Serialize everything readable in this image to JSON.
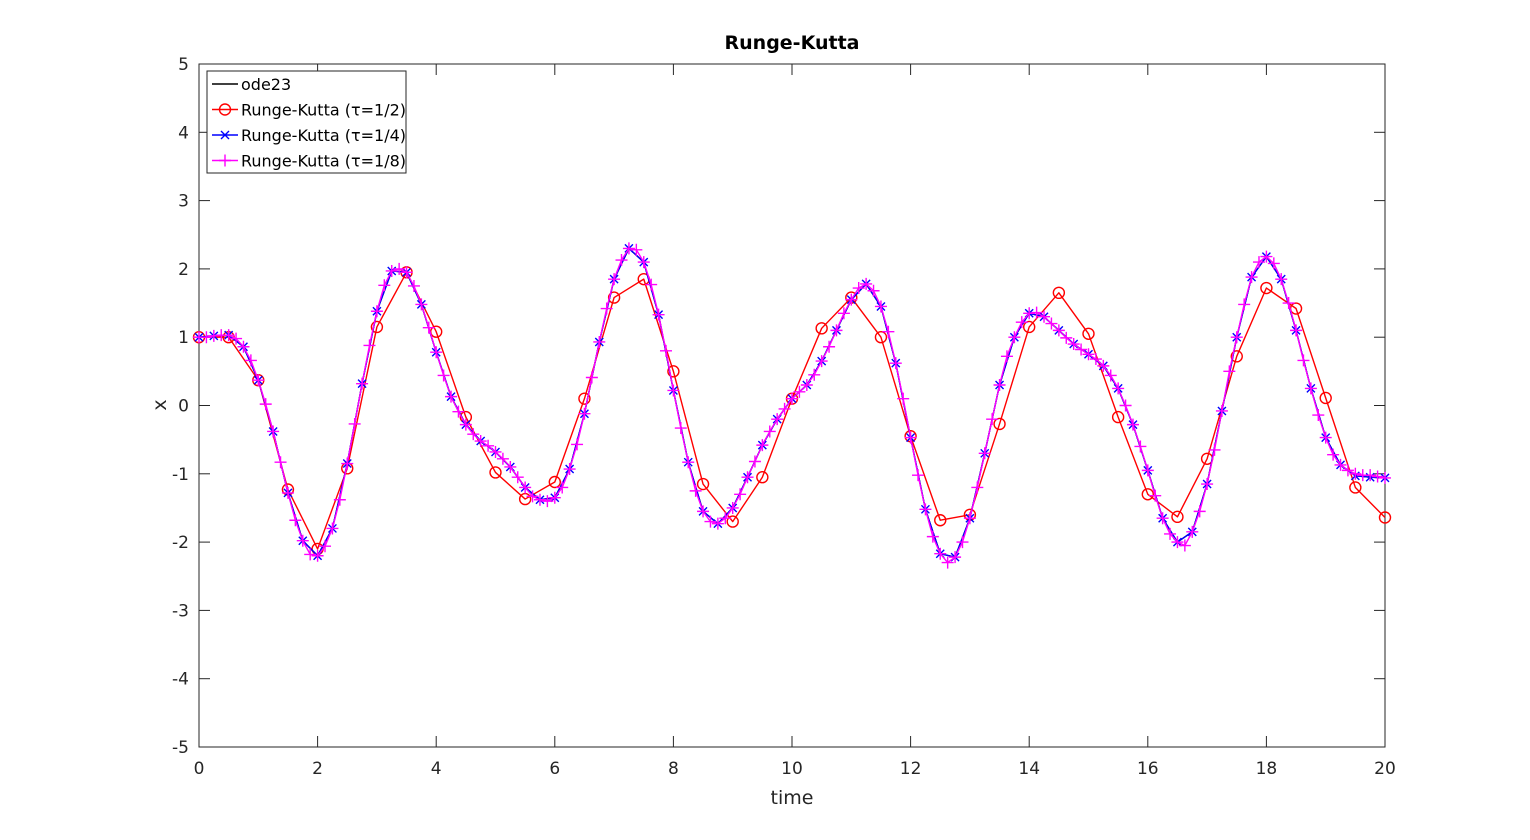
{
  "chart_data": {
    "type": "line",
    "title": "Runge-Kutta",
    "xlabel": "time",
    "ylabel": "x",
    "xlim": [
      0,
      20
    ],
    "ylim": [
      -5,
      5
    ],
    "xticks": [
      0,
      2,
      4,
      6,
      8,
      10,
      12,
      14,
      16,
      18,
      20
    ],
    "yticks": [
      -5,
      -4,
      -3,
      -2,
      -1,
      0,
      1,
      2,
      3,
      4,
      5
    ],
    "grid": false,
    "legend_position": "top-left",
    "series": [
      {
        "name": "ode23",
        "legend_label": "ode23",
        "color": "#000000",
        "marker": "none",
        "x": [
          0,
          0.25,
          0.5,
          0.75,
          1,
          1.25,
          1.5,
          1.75,
          2,
          2.25,
          2.5,
          2.75,
          3,
          3.25,
          3.5,
          3.75,
          4,
          4.25,
          4.5,
          4.75,
          5,
          5.25,
          5.5,
          5.75,
          6,
          6.25,
          6.5,
          6.75,
          7,
          7.25,
          7.5,
          7.75,
          8,
          8.25,
          8.5,
          8.75,
          9,
          9.25,
          9.5,
          9.75,
          10,
          10.25,
          10.5,
          10.75,
          11,
          11.25,
          11.5,
          11.75,
          12,
          12.25,
          12.5,
          12.75,
          13,
          13.25,
          13.5,
          13.75,
          14,
          14.25,
          14.5,
          14.75,
          15,
          15.25,
          15.5,
          15.75,
          16,
          16.25,
          16.5,
          16.75,
          17,
          17.25,
          17.5,
          17.75,
          18,
          18.25,
          18.5,
          18.75,
          19,
          19.25,
          19.5,
          19.75,
          20
        ],
        "values": [
          1,
          1.02,
          1.03,
          0.86,
          0.37,
          -0.38,
          -1.28,
          -1.98,
          -2.2,
          -1.8,
          -0.85,
          0.32,
          1.38,
          1.97,
          1.95,
          1.48,
          0.78,
          0.13,
          -0.28,
          -0.52,
          -0.68,
          -0.9,
          -1.2,
          -1.38,
          -1.35,
          -0.93,
          -0.12,
          0.93,
          1.85,
          2.3,
          2.1,
          1.33,
          0.22,
          -0.83,
          -1.55,
          -1.73,
          -1.5,
          -1.05,
          -0.58,
          -0.2,
          0.1,
          0.3,
          0.65,
          1.1,
          1.55,
          1.78,
          1.45,
          0.62,
          -0.47,
          -1.52,
          -2.17,
          -2.22,
          -1.65,
          -0.7,
          0.3,
          1.0,
          1.35,
          1.3,
          1.1,
          0.9,
          0.75,
          0.58,
          0.25,
          -0.28,
          -0.95,
          -1.65,
          -2.0,
          -1.85,
          -1.15,
          -0.08,
          1.0,
          1.88,
          2.18,
          1.85,
          1.1,
          0.25,
          -0.47,
          -0.87,
          -1.03,
          -1.05,
          -1.06
        ]
      },
      {
        "name": "Runge-Kutta (τ=1/2)",
        "legend_label": "Runge-Kutta (τ=1/2)",
        "color": "#ff0000",
        "marker": "circle",
        "x": [
          0,
          0.5,
          1,
          1.5,
          2,
          2.5,
          3,
          3.5,
          4,
          4.5,
          5,
          5.5,
          6,
          6.5,
          7,
          7.5,
          8,
          8.5,
          9,
          9.5,
          10,
          10.5,
          11,
          11.5,
          12,
          12.5,
          13,
          13.5,
          14,
          14.5,
          15,
          15.5,
          16,
          16.5,
          17,
          17.5,
          18,
          18.5,
          19,
          19.5,
          20
        ],
        "values": [
          1,
          1.0,
          0.37,
          -1.23,
          -2.1,
          -0.92,
          1.15,
          1.95,
          1.08,
          -0.17,
          -0.98,
          -1.37,
          -1.12,
          0.1,
          1.58,
          1.85,
          0.5,
          -1.15,
          -1.7,
          -1.05,
          0.1,
          1.13,
          1.58,
          1.0,
          -0.45,
          -1.68,
          -1.6,
          -0.27,
          1.15,
          1.65,
          1.05,
          -0.17,
          -1.3,
          -1.63,
          -0.78,
          0.72,
          1.72,
          1.42,
          0.11,
          -1.2,
          -1.64
        ]
      },
      {
        "name": "Runge-Kutta (τ=1/4)",
        "legend_label": "Runge-Kutta (τ=1/4)",
        "color": "#0000ff",
        "marker": "x",
        "x": [
          0,
          0.25,
          0.5,
          0.75,
          1,
          1.25,
          1.5,
          1.75,
          2,
          2.25,
          2.5,
          2.75,
          3,
          3.25,
          3.5,
          3.75,
          4,
          4.25,
          4.5,
          4.75,
          5,
          5.25,
          5.5,
          5.75,
          6,
          6.25,
          6.5,
          6.75,
          7,
          7.25,
          7.5,
          7.75,
          8,
          8.25,
          8.5,
          8.75,
          9,
          9.25,
          9.5,
          9.75,
          10,
          10.25,
          10.5,
          10.75,
          11,
          11.25,
          11.5,
          11.75,
          12,
          12.25,
          12.5,
          12.75,
          13,
          13.25,
          13.5,
          13.75,
          14,
          14.25,
          14.5,
          14.75,
          15,
          15.25,
          15.5,
          15.75,
          16,
          16.25,
          16.5,
          16.75,
          17,
          17.25,
          17.5,
          17.75,
          18,
          18.25,
          18.5,
          18.75,
          19,
          19.25,
          19.5,
          19.75,
          20
        ],
        "values": [
          1,
          1.02,
          1.03,
          0.86,
          0.37,
          -0.38,
          -1.28,
          -1.98,
          -2.2,
          -1.8,
          -0.85,
          0.32,
          1.38,
          1.97,
          1.95,
          1.48,
          0.78,
          0.13,
          -0.28,
          -0.52,
          -0.68,
          -0.9,
          -1.2,
          -1.38,
          -1.35,
          -0.93,
          -0.12,
          0.93,
          1.85,
          2.3,
          2.1,
          1.33,
          0.22,
          -0.83,
          -1.55,
          -1.73,
          -1.5,
          -1.05,
          -0.58,
          -0.2,
          0.1,
          0.3,
          0.65,
          1.1,
          1.55,
          1.78,
          1.45,
          0.62,
          -0.47,
          -1.52,
          -2.17,
          -2.22,
          -1.65,
          -0.7,
          0.3,
          1.0,
          1.35,
          1.3,
          1.1,
          0.9,
          0.75,
          0.58,
          0.25,
          -0.28,
          -0.95,
          -1.65,
          -2.0,
          -1.85,
          -1.15,
          -0.08,
          1.0,
          1.88,
          2.18,
          1.85,
          1.1,
          0.25,
          -0.47,
          -0.87,
          -1.03,
          -1.05,
          -1.06
        ]
      },
      {
        "name": "Runge-Kutta (τ=1/8)",
        "legend_label": "Runge-Kutta (τ=1/8)",
        "color": "#ff00ff",
        "marker": "plus",
        "x": [
          0,
          0.125,
          0.25,
          0.375,
          0.5,
          0.625,
          0.75,
          0.875,
          1,
          1.125,
          1.25,
          1.375,
          1.5,
          1.625,
          1.75,
          1.875,
          2,
          2.125,
          2.25,
          2.375,
          2.5,
          2.625,
          2.75,
          2.875,
          3,
          3.125,
          3.25,
          3.375,
          3.5,
          3.625,
          3.75,
          3.875,
          4,
          4.125,
          4.25,
          4.375,
          4.5,
          4.625,
          4.75,
          4.875,
          5,
          5.125,
          5.25,
          5.375,
          5.5,
          5.625,
          5.75,
          5.875,
          6,
          6.125,
          6.25,
          6.375,
          6.5,
          6.625,
          6.75,
          6.875,
          7,
          7.125,
          7.25,
          7.375,
          7.5,
          7.625,
          7.75,
          7.875,
          8,
          8.125,
          8.25,
          8.375,
          8.5,
          8.625,
          8.75,
          8.875,
          9,
          9.125,
          9.25,
          9.375,
          9.5,
          9.625,
          9.75,
          9.875,
          10,
          10.125,
          10.25,
          10.375,
          10.5,
          10.625,
          10.75,
          10.875,
          11,
          11.125,
          11.25,
          11.375,
          11.5,
          11.625,
          11.75,
          11.875,
          12,
          12.125,
          12.25,
          12.375,
          12.5,
          12.625,
          12.75,
          12.875,
          13,
          13.125,
          13.25,
          13.375,
          13.5,
          13.625,
          13.75,
          13.875,
          14,
          14.125,
          14.25,
          14.375,
          14.5,
          14.625,
          14.75,
          14.875,
          15,
          15.125,
          15.25,
          15.375,
          15.5,
          15.625,
          15.75,
          15.875,
          16,
          16.125,
          16.25,
          16.375,
          16.5,
          16.625,
          16.75,
          16.875,
          17,
          17.125,
          17.25,
          17.375,
          17.5,
          17.625,
          17.75,
          17.875,
          18,
          18.125,
          18.25,
          18.375,
          18.5,
          18.625,
          18.75,
          18.875,
          19,
          19.125,
          19.25,
          19.375,
          19.5,
          19.625,
          19.75,
          19.875,
          20
        ],
        "values": [
          1,
          1.0,
          1.02,
          1.03,
          1.03,
          0.98,
          0.86,
          0.66,
          0.37,
          0.02,
          -0.38,
          -0.83,
          -1.28,
          -1.68,
          -1.98,
          -2.18,
          -2.2,
          -2.06,
          -1.8,
          -1.38,
          -0.85,
          -0.27,
          0.32,
          0.88,
          1.38,
          1.76,
          1.97,
          2.0,
          1.95,
          1.75,
          1.48,
          1.14,
          0.78,
          0.44,
          0.13,
          -0.09,
          -0.28,
          -0.42,
          -0.52,
          -0.59,
          -0.68,
          -0.78,
          -0.9,
          -1.05,
          -1.2,
          -1.33,
          -1.38,
          -1.4,
          -1.35,
          -1.2,
          -0.93,
          -0.57,
          -0.12,
          0.41,
          0.93,
          1.42,
          1.85,
          2.13,
          2.3,
          2.28,
          2.1,
          1.77,
          1.33,
          0.8,
          0.22,
          -0.33,
          -0.83,
          -1.25,
          -1.55,
          -1.7,
          -1.73,
          -1.65,
          -1.5,
          -1.3,
          -1.05,
          -0.82,
          -0.58,
          -0.38,
          -0.2,
          -0.05,
          0.1,
          0.2,
          0.3,
          0.45,
          0.65,
          0.86,
          1.1,
          1.35,
          1.55,
          1.72,
          1.78,
          1.68,
          1.45,
          1.08,
          0.62,
          0.1,
          -0.47,
          -1.02,
          -1.52,
          -1.92,
          -2.17,
          -2.3,
          -2.22,
          -2.0,
          -1.65,
          -1.2,
          -0.7,
          -0.2,
          0.3,
          0.72,
          1.0,
          1.22,
          1.35,
          1.36,
          1.3,
          1.2,
          1.1,
          0.99,
          0.9,
          0.82,
          0.75,
          0.68,
          0.58,
          0.44,
          0.25,
          0.0,
          -0.28,
          -0.6,
          -0.95,
          -1.32,
          -1.65,
          -1.88,
          -2.0,
          -2.05,
          -1.85,
          -1.55,
          -1.15,
          -0.65,
          -0.08,
          0.5,
          1.0,
          1.48,
          1.88,
          2.1,
          2.18,
          2.08,
          1.85,
          1.5,
          1.1,
          0.66,
          0.25,
          -0.14,
          -0.47,
          -0.72,
          -0.87,
          -0.95,
          -1.0,
          -1.02,
          -1.02,
          -1.04,
          -1.06
        ]
      }
    ]
  }
}
